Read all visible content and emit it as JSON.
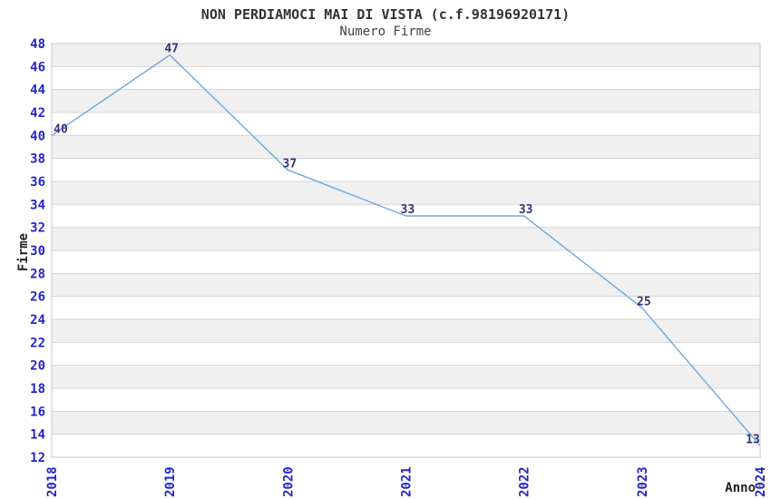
{
  "chart_data": {
    "type": "line",
    "title": "NON PERDIAMOCI MAI DI VISTA (c.f.98196920171)",
    "subtitle": "Numero Firme",
    "xlabel": "Anno",
    "ylabel": "Firme",
    "categories": [
      "2018",
      "2019",
      "2020",
      "2021",
      "2022",
      "2023",
      "2024"
    ],
    "series": [
      {
        "name": "Numero Firme",
        "values": [
          40,
          47,
          37,
          33,
          33,
          25,
          13
        ]
      }
    ],
    "point_labels": [
      "40",
      "47",
      "37",
      "33",
      "33",
      "25",
      "13"
    ],
    "ylim": [
      12,
      48
    ],
    "ytick_step": 2,
    "grid": "horizontal alternating bands every 2 units",
    "legend": "none",
    "colors": {
      "line": "#6fa8dc",
      "tick_label": "#2424cc",
      "point_label": "#333380",
      "band_gray": "#f0f0f0",
      "band_white": "#ffffff",
      "gridline": "#d6d6d6",
      "plot_border": "#c8c8c8",
      "title_text": "#333333"
    }
  }
}
